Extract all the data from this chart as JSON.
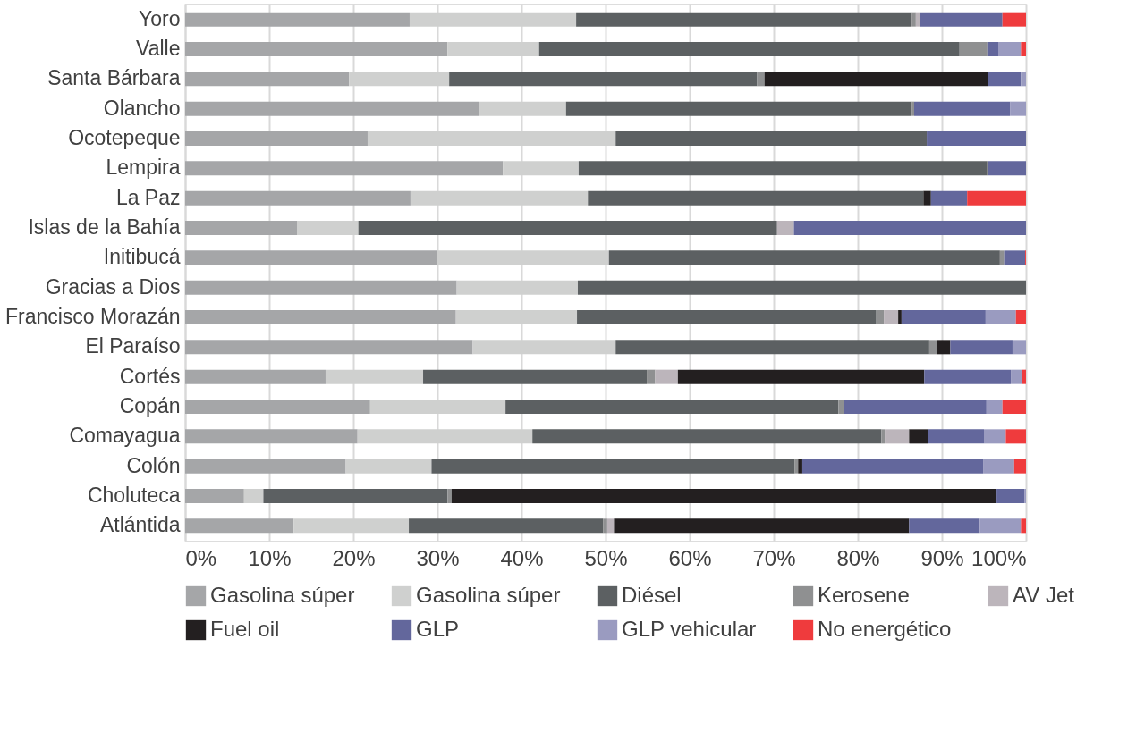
{
  "chart_data": {
    "type": "bar",
    "orientation": "horizontal",
    "stacked": true,
    "categories": [
      "Yoro",
      "Valle",
      "Santa Bárbara",
      "Olancho",
      "Ocotepeque",
      "Lempira",
      "La Paz",
      "Islas de la Bahía",
      "Initibucá",
      "Gracias a Dios",
      "Francisco Morazán",
      "El Paraíso",
      "Cortés",
      "Copán",
      "Comayagua",
      "Colón",
      "Choluteca",
      "Atlántida"
    ],
    "series": [
      {
        "name": "Gasolina súper",
        "color": "#a5a6a8",
        "values": [
          26.7,
          31.2,
          19.5,
          34.9,
          21.7,
          37.8,
          26.8,
          13.3,
          30.0,
          32.3,
          32.2,
          34.2,
          16.7,
          22.0,
          20.5,
          19.1,
          7.0,
          12.9
        ]
      },
      {
        "name": "Gasolina súper",
        "color": "#cfd0cf",
        "values": [
          19.8,
          10.9,
          11.9,
          10.4,
          29.5,
          9.0,
          21.1,
          7.3,
          20.4,
          14.4,
          14.4,
          17.0,
          11.6,
          16.1,
          20.8,
          10.2,
          2.3,
          13.7
        ]
      },
      {
        "name": "Diésel",
        "color": "#5c6062",
        "values": [
          39.9,
          50.0,
          36.6,
          41.1,
          37.0,
          48.6,
          39.9,
          49.8,
          46.5,
          53.3,
          35.6,
          37.3,
          26.6,
          39.6,
          41.5,
          43.2,
          21.9,
          23.1
        ]
      },
      {
        "name": "Kerosene",
        "color": "#8f9091",
        "values": [
          0.5,
          3.3,
          0.9,
          0.3,
          0,
          0.1,
          0,
          0,
          0.5,
          0,
          0.9,
          0.9,
          1.0,
          0.6,
          0.4,
          0.4,
          0.5,
          0.5
        ]
      },
      {
        "name": "AV Jet",
        "color": "#bcb5bb",
        "values": [
          0.5,
          0,
          0,
          0,
          0,
          0,
          0,
          2.0,
          0,
          0,
          1.7,
          0,
          2.7,
          0,
          2.9,
          0,
          0,
          0.8
        ]
      },
      {
        "name": "Fuel oil",
        "color": "#231f20",
        "values": [
          0,
          0,
          26.6,
          0,
          0,
          0,
          0.9,
          0,
          0,
          0,
          0.4,
          1.6,
          29.3,
          0,
          2.2,
          0.5,
          64.8,
          35.1
        ]
      },
      {
        "name": "GLP",
        "color": "#63679c",
        "values": [
          9.8,
          1.3,
          3.9,
          11.4,
          11.8,
          4.5,
          4.3,
          27.6,
          2.5,
          0,
          10.0,
          7.4,
          10.3,
          17.0,
          6.7,
          21.5,
          3.3,
          8.4
        ]
      },
      {
        "name": "GLP vehicular",
        "color": "#9a9bc0",
        "values": [
          0,
          2.7,
          0.6,
          1.9,
          0,
          0,
          0,
          0,
          0,
          0,
          3.6,
          1.6,
          1.3,
          1.9,
          2.6,
          3.7,
          0.2,
          4.9
        ]
      },
      {
        "name": "No energético",
        "color": "#ef3b3d",
        "values": [
          2.8,
          0.6,
          0,
          0,
          0,
          0,
          7.0,
          0,
          0.1,
          0,
          1.2,
          0,
          0.5,
          2.8,
          2.4,
          1.4,
          0,
          0.6
        ]
      }
    ],
    "xlim": [
      0,
      100
    ],
    "xticks": [
      {
        "value": 0,
        "label": "0%"
      },
      {
        "value": 10,
        "label": "10%"
      },
      {
        "value": 20,
        "label": "20%"
      },
      {
        "value": 30,
        "label": "30%"
      },
      {
        "value": 40,
        "label": "40%"
      },
      {
        "value": 50,
        "label": "50%"
      },
      {
        "value": 60,
        "label": "60%"
      },
      {
        "value": 70,
        "label": "70%"
      },
      {
        "value": 80,
        "label": "80%"
      },
      {
        "value": 90,
        "label": "90%"
      },
      {
        "value": 100,
        "label": "100%"
      }
    ],
    "grid": "x",
    "legend": "bottom"
  }
}
